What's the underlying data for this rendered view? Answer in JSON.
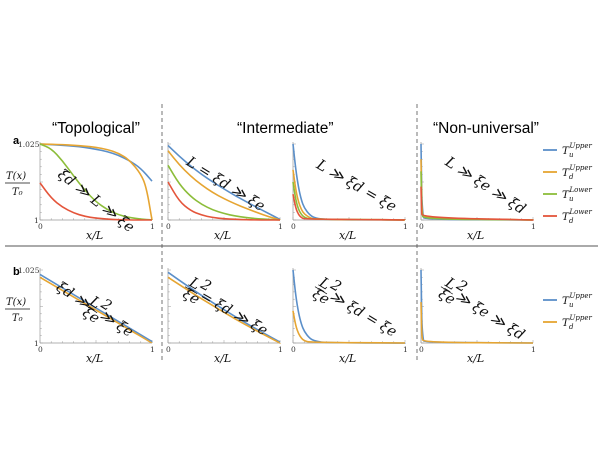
{
  "headers": {
    "topological": "“Topological”",
    "intermediate": "“Intermediate”",
    "nonuniversal": "“Non-universal”"
  },
  "panel_labels": {
    "a": "a",
    "b": "b"
  },
  "y_label": {
    "num": "T(x)",
    "den": "T₀"
  },
  "colors": {
    "Tu_upper": "#5b8fc9",
    "Td_upper": "#e6a532",
    "Tu_lower": "#8cbd3a",
    "Td_lower": "#e4553b"
  },
  "legend_a": [
    {
      "sym": "T",
      "sub": "u",
      "sup": "Upper",
      "color_key": "Tu_upper"
    },
    {
      "sym": "T",
      "sub": "d",
      "sup": "Upper",
      "color_key": "Td_upper"
    },
    {
      "sym": "T",
      "sub": "u",
      "sup": "Lower",
      "color_key": "Tu_lower"
    },
    {
      "sym": "T",
      "sub": "d",
      "sup": "Lower",
      "color_key": "Td_lower"
    }
  ],
  "legend_b": [
    {
      "sym": "T",
      "sub": "u",
      "sup": "Upper",
      "color_key": "Tu_upper"
    },
    {
      "sym": "T",
      "sub": "d",
      "sup": "Upper",
      "color_key": "Td_upper"
    }
  ],
  "chart_data": [
    {
      "id": "a1",
      "type": "line",
      "xlabel": "x/L",
      "ylim": [
        1,
        1.025
      ],
      "xlim": [
        0,
        1
      ],
      "ylabel": "T(x)/T₀",
      "ytick_labels": [
        "1.025",
        "1"
      ],
      "xtick_labels": [
        "0",
        "1"
      ],
      "annotation": "ξd ≫ L ≫ ξe",
      "series": [
        {
          "key": "Tu_upper",
          "x": [
            0,
            0.1,
            0.2,
            0.3,
            0.4,
            0.5,
            0.6,
            0.7,
            0.8,
            0.9,
            1
          ],
          "y": [
            1.025,
            1.0248,
            1.0246,
            1.0243,
            1.0239,
            1.0233,
            1.0225,
            1.0213,
            1.0195,
            1.017,
            1.0128
          ]
        },
        {
          "key": "Td_upper",
          "x": [
            0,
            0.1,
            0.2,
            0.3,
            0.4,
            0.5,
            0.6,
            0.7,
            0.8,
            0.9,
            0.95,
            1
          ],
          "y": [
            1.025,
            1.0249,
            1.0248,
            1.0246,
            1.0243,
            1.0239,
            1.0232,
            1.022,
            1.0197,
            1.0152,
            1.0107,
            1.0
          ]
        },
        {
          "key": "Tu_lower",
          "x": [
            0,
            0.1,
            0.2,
            0.3,
            0.4,
            0.5,
            0.6,
            0.7,
            0.8,
            0.9,
            1
          ],
          "y": [
            1.025,
            1.0235,
            1.0195,
            1.0145,
            1.0098,
            1.006,
            1.0034,
            1.0017,
            1.0008,
            1.0003,
            1.0
          ]
        },
        {
          "key": "Td_lower",
          "x": [
            0,
            0.1,
            0.2,
            0.3,
            0.4,
            0.5,
            0.6,
            0.7,
            0.8,
            1
          ],
          "y": [
            1.0122,
            1.0072,
            1.0042,
            1.0023,
            1.0012,
            1.0006,
            1.0003,
            1.0001,
            1.0,
            1.0
          ]
        }
      ]
    },
    {
      "id": "a2",
      "type": "line",
      "xlabel": "x/L",
      "ylim": [
        1,
        1.025
      ],
      "xlim": [
        0,
        1
      ],
      "annotation": "L = ξd ≫ ξe",
      "series": [
        {
          "key": "Tu_upper",
          "x": [
            0,
            0.1,
            0.2,
            0.3,
            0.4,
            0.5,
            0.6,
            0.7,
            0.8,
            0.9,
            1
          ],
          "y": [
            1.0245,
            1.021,
            1.0178,
            1.015,
            1.0125,
            1.0102,
            1.008,
            1.006,
            1.004,
            1.0021,
            1.0002
          ]
        },
        {
          "key": "Td_upper",
          "x": [
            0,
            0.1,
            0.2,
            0.3,
            0.4,
            0.5,
            0.6,
            0.7,
            0.8,
            0.9,
            1
          ],
          "y": [
            1.0228,
            1.0182,
            1.0145,
            1.0115,
            1.009,
            1.007,
            1.0053,
            1.0038,
            1.0024,
            1.0011,
            1.0
          ]
        },
        {
          "key": "Tu_lower",
          "x": [
            0,
            0.1,
            0.2,
            0.3,
            0.4,
            0.5,
            0.6,
            0.7,
            0.8,
            0.9,
            1
          ],
          "y": [
            1.018,
            1.0118,
            1.0078,
            1.0051,
            1.0033,
            1.0021,
            1.0013,
            1.0008,
            1.0004,
            1.0002,
            1.0
          ]
        },
        {
          "key": "Td_lower",
          "x": [
            0,
            0.1,
            0.2,
            0.3,
            0.4,
            0.5,
            0.6,
            0.8,
            1
          ],
          "y": [
            1.0125,
            1.0062,
            1.0031,
            1.0016,
            1.0008,
            1.0004,
            1.0002,
            1.0,
            1.0
          ]
        }
      ]
    },
    {
      "id": "a3",
      "type": "line",
      "xlabel": "x/L",
      "ylim": [
        1,
        1.025
      ],
      "xlim": [
        0,
        1
      ],
      "annotation": "L ≫ ξd = ξe",
      "series": [
        {
          "key": "Tu_upper",
          "x": [
            0,
            0.025,
            0.05,
            0.075,
            0.1,
            0.15,
            0.2,
            0.3,
            1
          ],
          "y": [
            1.025,
            1.0165,
            1.0105,
            1.0065,
            1.004,
            1.0016,
            1.0006,
            1.0001,
            1.0
          ]
        },
        {
          "key": "Td_upper",
          "x": [
            0,
            0.025,
            0.05,
            0.075,
            0.1,
            0.15,
            0.2,
            1
          ],
          "y": [
            1.0165,
            1.0098,
            1.0058,
            1.0034,
            1.002,
            1.0007,
            1.0002,
            1.0
          ]
        },
        {
          "key": "Tu_lower",
          "x": [
            0,
            0.025,
            0.05,
            0.075,
            0.1,
            0.15,
            1
          ],
          "y": [
            1.0125,
            1.0065,
            1.0034,
            1.0018,
            1.0009,
            1.0003,
            1.0
          ]
        },
        {
          "key": "Td_lower",
          "x": [
            0,
            0.025,
            0.05,
            0.075,
            0.1,
            1
          ],
          "y": [
            1.0085,
            1.0038,
            1.0017,
            1.0008,
            1.0003,
            1.0
          ]
        }
      ]
    },
    {
      "id": "a4",
      "type": "line",
      "xlabel": "x/L",
      "ylim": [
        1,
        1.025
      ],
      "xlim": [
        0,
        1
      ],
      "annotation": "L ≫ ξe ≫ ξd",
      "series": [
        {
          "key": "Tu_upper",
          "x": [
            0,
            0.005,
            0.01,
            0.02,
            0.03,
            1
          ],
          "y": [
            1.025,
            1.012,
            1.005,
            1.0012,
            1.0002,
            1.0
          ]
        },
        {
          "key": "Td_upper",
          "x": [
            0,
            0.005,
            0.01,
            0.02,
            1
          ],
          "y": [
            1.02,
            1.008,
            1.003,
            1.0005,
            1.0
          ]
        },
        {
          "key": "Tu_lower",
          "x": [
            0,
            0.005,
            0.01,
            0.02,
            1
          ],
          "y": [
            1.016,
            1.006,
            1.002,
            1.0003,
            1.0
          ]
        },
        {
          "key": "Td_lower",
          "x": [
            0,
            0.005,
            0.01,
            1
          ],
          "y": [
            1.011,
            1.003,
            1.0008,
            1.0
          ]
        }
      ]
    },
    {
      "id": "b1",
      "type": "line",
      "xlabel": "x/L",
      "ylim": [
        1,
        1.025
      ],
      "xlim": [
        0,
        1
      ],
      "ylabel": "T(x)/T₀",
      "ytick_labels": [
        "1.025",
        "1"
      ],
      "xtick_labels": [
        "0",
        "1"
      ],
      "annotation": "ξd ≫ Lξe²/ ≫ ξe",
      "annotation_parts": {
        "a": "ξd ≫",
        "num": "L",
        "den": "ξe",
        "pow": "2",
        "b": "≫ ξe"
      },
      "series": [
        {
          "key": "Tu_upper",
          "x": [
            0,
            1
          ],
          "y": [
            1.0235,
            1.0005
          ]
        },
        {
          "key": "Td_upper",
          "x": [
            0,
            1
          ],
          "y": [
            1.0225,
            1.0
          ]
        }
      ]
    },
    {
      "id": "b2",
      "type": "line",
      "xlabel": "x/L",
      "ylim": [
        1,
        1.025
      ],
      "xlim": [
        0,
        1
      ],
      "annotation_parts": {
        "a": "",
        "num": "L",
        "den": "ξe",
        "pow": "2",
        "b": "= ξd ≫ ξe"
      },
      "series": [
        {
          "key": "Tu_upper",
          "x": [
            0,
            0.2,
            0.4,
            0.6,
            0.8,
            1
          ],
          "y": [
            1.0242,
            1.0188,
            1.0138,
            1.009,
            1.0045,
            1.0003
          ]
        },
        {
          "key": "Td_upper",
          "x": [
            0,
            0.2,
            0.4,
            0.6,
            0.8,
            1
          ],
          "y": [
            1.0225,
            1.0175,
            1.0128,
            1.0082,
            1.004,
            1.0
          ]
        }
      ]
    },
    {
      "id": "b3",
      "type": "line",
      "xlabel": "x/L",
      "ylim": [
        1,
        1.025
      ],
      "xlim": [
        0,
        1
      ],
      "annotation_parts": {
        "a": "",
        "num": "L",
        "den": "ξe",
        "pow": "2",
        "b": "≫ ξd = ξe"
      },
      "series": [
        {
          "key": "Tu_upper",
          "x": [
            0,
            0.025,
            0.05,
            0.075,
            0.1,
            0.15,
            0.2,
            0.3,
            1
          ],
          "y": [
            1.025,
            1.016,
            1.0102,
            1.0064,
            1.004,
            1.0015,
            1.0006,
            1.0001,
            1.0
          ]
        },
        {
          "key": "Td_upper",
          "x": [
            0,
            0.025,
            0.05,
            0.075,
            0.1,
            0.15,
            1
          ],
          "y": [
            1.011,
            1.0058,
            1.0031,
            1.0016,
            1.0008,
            1.0002,
            1.0
          ]
        }
      ]
    },
    {
      "id": "b4",
      "type": "line",
      "xlabel": "x/L",
      "ylim": [
        1,
        1.025
      ],
      "xlim": [
        0,
        1
      ],
      "annotation_parts": {
        "a": "",
        "num": "L",
        "den": "ξe",
        "pow": "2",
        "b": "≫ ξe ≫ ξd"
      },
      "series": [
        {
          "key": "Tu_upper",
          "x": [
            0,
            0.005,
            0.01,
            0.02,
            0.03,
            1
          ],
          "y": [
            1.025,
            1.012,
            1.005,
            1.0012,
            1.0002,
            1.0
          ]
        },
        {
          "key": "Td_upper",
          "x": [
            0,
            0.005,
            0.01,
            0.02,
            1
          ],
          "y": [
            1.014,
            1.005,
            1.0018,
            1.0002,
            1.0
          ]
        }
      ]
    }
  ]
}
